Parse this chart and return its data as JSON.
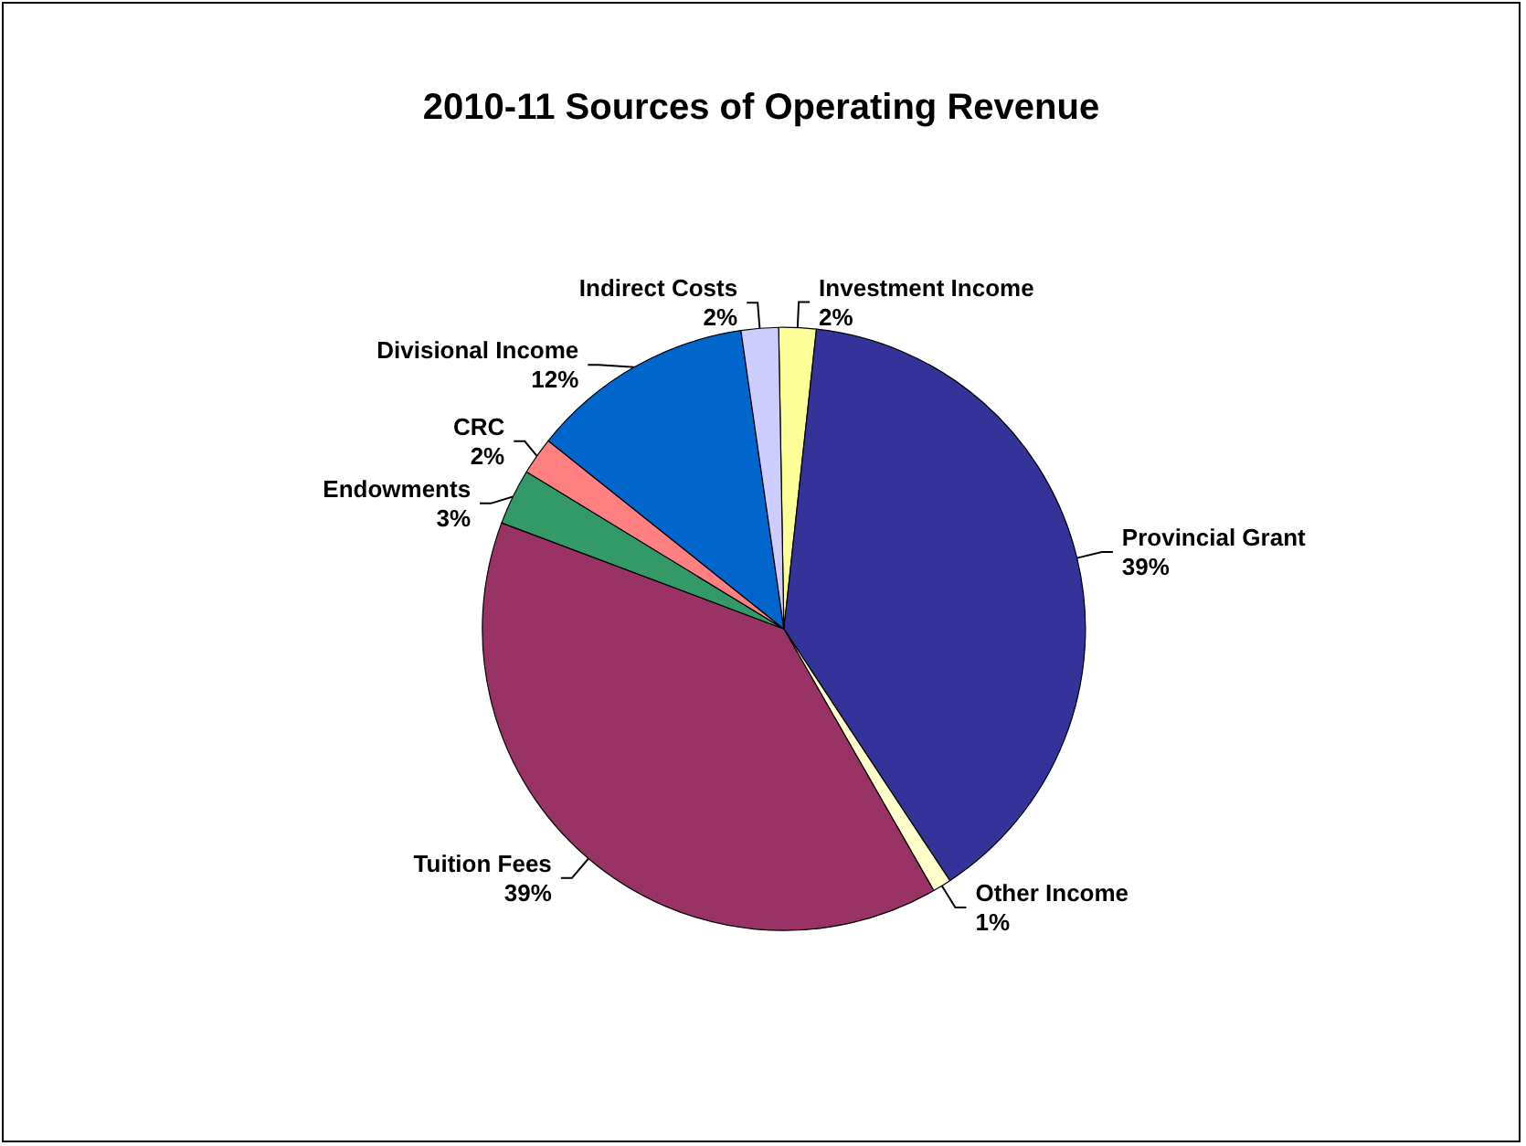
{
  "chart_data": {
    "type": "pie",
    "title": "2010-11 Sources of Operating Revenue",
    "categories": [
      "Investment Income",
      "Provincial Grant",
      "Other Income",
      "Tuition Fees",
      "Endowments",
      "CRC",
      "Divisional Income",
      "Indirect Costs"
    ],
    "values": [
      2,
      39,
      1,
      39,
      3,
      2,
      12,
      2
    ],
    "value_labels": [
      "2%",
      "39%",
      "1%",
      "39%",
      "3%",
      "2%",
      "12%",
      "2%"
    ],
    "colors": [
      "#ffff99",
      "#333399",
      "#ffffcc",
      "#993366",
      "#339966",
      "#ff8080",
      "#0066cc",
      "#ccccff"
    ],
    "legend": false
  }
}
